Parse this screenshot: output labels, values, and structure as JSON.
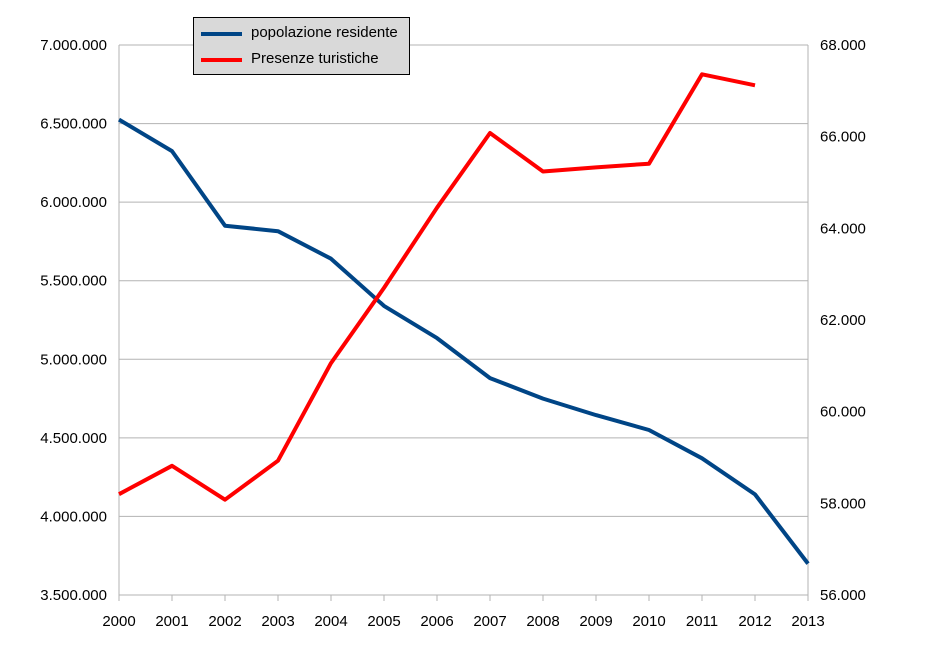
{
  "chart_data": {
    "type": "line",
    "title": "",
    "xlabel": "",
    "ylabel": "",
    "y2label": "",
    "categories": [
      "2000",
      "2001",
      "2002",
      "2003",
      "2004",
      "2005",
      "2006",
      "2007",
      "2008",
      "2009",
      "2010",
      "2011",
      "2012",
      "2013"
    ],
    "ylim": [
      3500000,
      7000000
    ],
    "y2lim": [
      56000,
      68000
    ],
    "yticks": [
      "3.500.000",
      "4.000.000",
      "4.500.000",
      "5.000.000",
      "5.500.000",
      "6.000.000",
      "6.500.000",
      "7.000.000"
    ],
    "y2ticks": [
      "56.000",
      "58.000",
      "60.000",
      "62.000",
      "64.000",
      "66.000",
      "68.000"
    ],
    "grid": true,
    "legend": "top-left",
    "series": [
      {
        "name": "popolazione residente",
        "axis": "left",
        "color": "#004586",
        "values": [
          6525000,
          6325000,
          5850000,
          5815000,
          5640000,
          5340000,
          5135000,
          4880000,
          4750000,
          4645000,
          4550000,
          4370000,
          4140000,
          3700000
        ]
      },
      {
        "name": "Presenze turistiche",
        "axis": "right",
        "color": "#ff0000",
        "values": [
          58200,
          58820,
          58080,
          58930,
          61060,
          62700,
          64450,
          66080,
          65240,
          65330,
          65410,
          67360,
          67120,
          null
        ]
      }
    ]
  }
}
